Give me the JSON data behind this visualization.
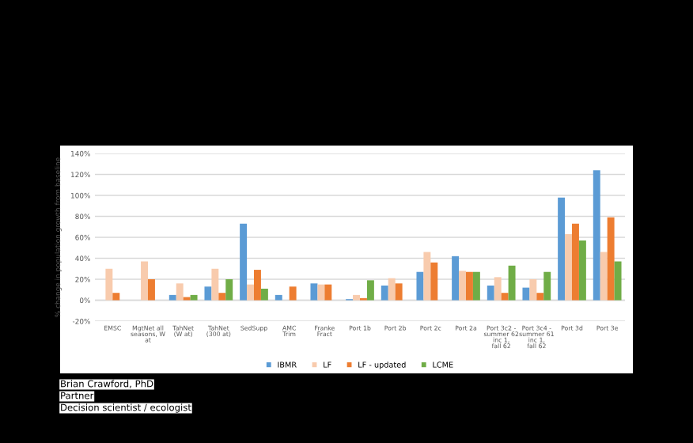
{
  "chart_data": {
    "type": "bar",
    "ylabel": "% change in population growth from baseline",
    "categories": [
      "EMSC",
      "MgtNet all\nseasons, W\nat",
      "TahNet\n(W at)",
      "TahNet\n(300 at)",
      "SedSupp",
      "AMC\nTrim",
      "Franke\nFract",
      "Port 1b",
      "Port 2b",
      "Port 2c",
      "Port 2a",
      "Port 3c2 -\nsummer 62\ninc 1,\nfall 62",
      "Port 3c4 -\nsummer 61\ninc 1,\nfall 62",
      "Port 3d",
      "Port 3e"
    ],
    "series": [
      {
        "name": "IBMR",
        "color": "#5b9bd5",
        "values": [
          0,
          0,
          5,
          13,
          73,
          5,
          16,
          1,
          14,
          27,
          42,
          14,
          12,
          98,
          124
        ]
      },
      {
        "name": "LF",
        "color": "#f8cbad",
        "values": [
          30,
          37,
          16,
          30,
          15,
          0,
          15,
          5,
          21,
          46,
          28,
          22,
          20,
          63,
          46
        ]
      },
      {
        "name": "LF - updated",
        "color": "#ed7d31",
        "values": [
          7,
          20,
          3,
          7,
          29,
          13,
          15,
          2,
          16,
          36,
          27,
          7,
          7,
          73,
          79
        ]
      },
      {
        "name": "LCME",
        "color": "#70ad47",
        "values": [
          0,
          0,
          5,
          20,
          11,
          0,
          0,
          19,
          0,
          0,
          27,
          33,
          27,
          57,
          37
        ]
      }
    ],
    "ylim": [
      -20,
      140
    ],
    "yticks": [
      {
        "value": -20,
        "label": "-20%"
      },
      {
        "value": 0,
        "label": "0%"
      },
      {
        "value": 20,
        "label": "20%"
      },
      {
        "value": 40,
        "label": "40%"
      },
      {
        "value": 60,
        "label": "60%"
      },
      {
        "value": 80,
        "label": "80%"
      },
      {
        "value": 100,
        "label": "100%"
      },
      {
        "value": 120,
        "label": "120%"
      },
      {
        "value": 140,
        "label": "140%"
      }
    ],
    "grid": "y",
    "legend": "bottom",
    "annotations": [
      "Brian Crawford, PhD",
      "Partner",
      "Decision scientist / ecologist"
    ]
  }
}
